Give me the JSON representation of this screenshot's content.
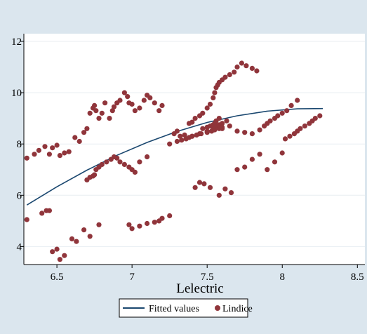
{
  "chart_data": {
    "type": "scatter",
    "title": "",
    "xlabel": "Lelectric",
    "ylabel": "",
    "xlim": [
      6.28,
      8.55
    ],
    "ylim": [
      3.3,
      12.3
    ],
    "xticks": [
      6.5,
      7,
      7.5,
      8,
      8.5
    ],
    "xtick_labels": [
      "6.5",
      "7",
      "7.5",
      "8",
      "8.5"
    ],
    "yticks": [
      4,
      6,
      8,
      10,
      12
    ],
    "ytick_labels": [
      "4",
      "6",
      "8",
      "10",
      "12"
    ],
    "grid": "horizontal",
    "legend_position": "bottom",
    "colors": {
      "background": "#dbe6ee",
      "plot_region": "#ffffff",
      "fitted_line": "#1a476f",
      "points": "#90353b",
      "gridline": "#e8eef2"
    },
    "series": [
      {
        "name": "Fitted values",
        "type": "line",
        "color": "#1a476f",
        "x": [
          6.3,
          6.5,
          6.7,
          6.9,
          7.1,
          7.3,
          7.5,
          7.7,
          7.9,
          8.1,
          8.27
        ],
        "y": [
          5.62,
          6.33,
          6.98,
          7.56,
          8.06,
          8.49,
          8.84,
          9.1,
          9.28,
          9.37,
          9.38
        ]
      },
      {
        "name": "Lindice",
        "type": "scatter",
        "color": "#90353b",
        "x": [
          6.3,
          6.35,
          6.38,
          6.42,
          6.45,
          6.47,
          6.5,
          6.52,
          6.55,
          6.58,
          6.62,
          6.65,
          6.68,
          6.7,
          6.72,
          6.74,
          6.75,
          6.76,
          6.78,
          6.8,
          6.82,
          6.85,
          6.87,
          6.88,
          6.9,
          6.92,
          6.95,
          6.97,
          6.98,
          7.0,
          7.02,
          7.05,
          7.08,
          7.1,
          7.12,
          7.15,
          7.18,
          7.2,
          6.7,
          6.72,
          6.74,
          6.75,
          6.76,
          6.78,
          6.8,
          6.83,
          6.86,
          6.88,
          6.9,
          6.92,
          6.95,
          6.98,
          7.0,
          7.02,
          7.05,
          7.1,
          6.3,
          6.4,
          6.43,
          6.45,
          6.47,
          6.5,
          6.52,
          6.55,
          6.6,
          6.63,
          6.68,
          6.72,
          6.78,
          6.98,
          7.0,
          7.05,
          7.1,
          7.15,
          7.18,
          7.2,
          7.25,
          7.28,
          7.3,
          7.32,
          7.35,
          7.38,
          7.4,
          7.42,
          7.45,
          7.47,
          7.5,
          7.52,
          7.54,
          7.55,
          7.56,
          7.57,
          7.58,
          7.6,
          7.62,
          7.65,
          7.68,
          7.7,
          7.73,
          7.76,
          7.8,
          7.83,
          7.47,
          7.5,
          7.52,
          7.54,
          7.55,
          7.56,
          7.58,
          7.6,
          7.42,
          7.45,
          7.48,
          7.52,
          7.58,
          7.62,
          7.66,
          7.7,
          7.75,
          7.8,
          7.85,
          7.9,
          7.95,
          8.0,
          8.02,
          8.05,
          8.08,
          8.1,
          8.12,
          8.15,
          8.18,
          8.2,
          8.22,
          8.25,
          7.4,
          7.45,
          7.5,
          7.54,
          7.56,
          7.58,
          7.6,
          7.63,
          7.25,
          7.3,
          7.33,
          7.36,
          7.38,
          7.4,
          7.43,
          7.46,
          7.5,
          7.53,
          7.55,
          7.58,
          7.6,
          7.65,
          7.7,
          7.75,
          7.8,
          7.85,
          7.88,
          7.9,
          7.92,
          7.95,
          7.97,
          8.0,
          8.03,
          8.06,
          8.1
        ],
        "y": [
          7.45,
          7.6,
          7.75,
          7.9,
          7.6,
          7.85,
          7.95,
          7.55,
          7.65,
          7.7,
          8.25,
          8.1,
          8.45,
          8.6,
          9.2,
          9.4,
          9.5,
          9.3,
          9.0,
          9.2,
          9.6,
          9.0,
          9.3,
          9.45,
          9.6,
          9.7,
          10.0,
          9.85,
          9.6,
          9.55,
          9.3,
          9.4,
          9.7,
          9.9,
          9.8,
          9.6,
          9.3,
          9.5,
          6.6,
          6.7,
          6.75,
          6.8,
          7.0,
          7.1,
          7.2,
          7.3,
          7.4,
          7.5,
          7.45,
          7.3,
          7.2,
          7.1,
          7.0,
          6.9,
          7.3,
          7.5,
          5.05,
          5.3,
          5.4,
          5.4,
          3.8,
          3.9,
          3.5,
          3.65,
          4.3,
          4.2,
          4.65,
          4.4,
          4.85,
          4.85,
          4.7,
          4.8,
          4.9,
          4.95,
          5.0,
          5.1,
          5.2,
          8.4,
          8.5,
          8.3,
          8.35,
          8.8,
          8.85,
          9.0,
          9.1,
          9.2,
          9.4,
          9.55,
          9.8,
          10.0,
          10.2,
          10.3,
          10.4,
          10.5,
          10.6,
          10.7,
          10.8,
          11.0,
          11.15,
          11.05,
          10.95,
          10.85,
          8.6,
          8.65,
          8.7,
          8.75,
          8.8,
          8.9,
          9.0,
          8.6,
          6.3,
          6.5,
          6.45,
          6.3,
          6.0,
          6.25,
          6.1,
          7.0,
          7.1,
          7.4,
          7.6,
          7.0,
          7.3,
          7.65,
          8.2,
          8.3,
          8.4,
          8.5,
          8.6,
          8.7,
          8.8,
          8.9,
          9.0,
          9.1,
          8.3,
          8.4,
          8.5,
          8.65,
          8.7,
          8.75,
          8.8,
          8.9,
          8.0,
          8.1,
          8.15,
          8.2,
          8.25,
          8.3,
          8.35,
          8.4,
          8.45,
          8.5,
          8.55,
          8.6,
          8.65,
          8.7,
          8.5,
          8.45,
          8.4,
          8.55,
          8.7,
          8.8,
          8.9,
          9.0,
          9.1,
          9.2,
          9.3,
          9.5,
          9.7
        ]
      }
    ],
    "legend": [
      "Fitted values",
      "Lindice"
    ]
  }
}
